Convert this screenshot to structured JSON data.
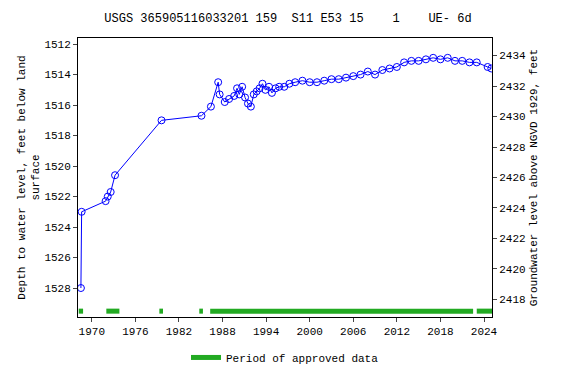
{
  "chart_data": {
    "type": "scatter",
    "title": "USGS 365905116033201 159  S11 E53 15    1    UE- 6d",
    "y_label": "Depth to water level, feet below land surface",
    "y2_label": "Groundwater level above NGVD 1929, feet",
    "x": [
      1968.5,
      1968.6,
      1971.9,
      1972.2,
      1972.6,
      1973.2,
      1979.6,
      1985.1,
      1986.4,
      1987.4,
      1987.6,
      1988.3,
      1988.9,
      1989.6,
      1990.0,
      1990.3,
      1990.7,
      1991.1,
      1991.5,
      1991.9,
      1992.3,
      1992.7,
      1993.1,
      1993.5,
      1993.9,
      1994.4,
      1994.8,
      1995.3,
      1995.8,
      1996.5,
      1997.2,
      1998.0,
      1999.0,
      2000.0,
      2001.0,
      2002.0,
      2003.0,
      2004.0,
      2005.0,
      2006.0,
      2007.0,
      2008.0,
      2009.0,
      2010.0,
      2011.0,
      2012.0,
      2013.0,
      2014.0,
      2015.0,
      2016.0,
      2017.0,
      2018.0,
      2019.0,
      2020.0,
      2021.0,
      2022.0,
      2023.0,
      2024.5,
      2025.0
    ],
    "series": [
      {
        "name": "Depth to water level",
        "color": "#0000ff",
        "marker": "circle-open",
        "line_style": "solid",
        "values": [
          1528,
          1523,
          1522.3,
          1522,
          1521.7,
          1520.6,
          1517,
          1516.7,
          1516.1,
          1514.5,
          1515.3,
          1515.8,
          1515.6,
          1515.4,
          1514.9,
          1515.3,
          1514.8,
          1515.5,
          1515.9,
          1516.1,
          1515.3,
          1515.1,
          1514.9,
          1514.6,
          1515.0,
          1514.8,
          1515.2,
          1514.9,
          1514.8,
          1514.8,
          1514.6,
          1514.5,
          1514.4,
          1514.5,
          1514.5,
          1514.4,
          1514.3,
          1514.3,
          1514.2,
          1514.1,
          1514.0,
          1513.8,
          1514.0,
          1513.7,
          1513.6,
          1513.5,
          1513.2,
          1513.1,
          1513.1,
          1513.0,
          1512.9,
          1513.0,
          1512.9,
          1513.1,
          1513.1,
          1513.2,
          1513.2,
          1513.5,
          1513.6
        ]
      }
    ],
    "approved": {
      "name": "Period of approved data",
      "color": "#22aa22",
      "periods": [
        [
          1968.2,
          1968.8
        ],
        [
          1972.0,
          1973.8
        ],
        [
          1979.3,
          1979.8
        ],
        [
          1984.8,
          1985.3
        ],
        [
          1986.3,
          2022.5
        ],
        [
          2023.0,
          2025.1
        ]
      ]
    },
    "xlim": [
      1968.1,
      2025.1
    ],
    "xticks": [
      1970,
      1976,
      1982,
      1988,
      1994,
      2000,
      2006,
      2012,
      2018,
      2024
    ],
    "ylim": [
      1529.9,
      1511.6
    ],
    "yticks": [
      1512,
      1514,
      1516,
      1518,
      1520,
      1522,
      1524,
      1526,
      1528
    ],
    "y2lim": [
      2416.85,
      2435.15
    ],
    "y2ticks": [
      2418,
      2420,
      2422,
      2424,
      2426,
      2428,
      2430,
      2432,
      2434
    ],
    "grid": false,
    "legend": "bottom"
  }
}
